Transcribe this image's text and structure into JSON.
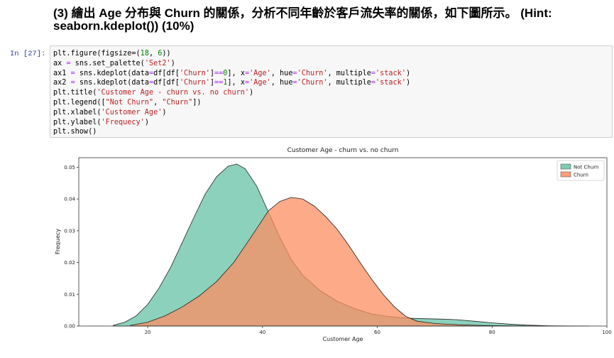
{
  "heading": {
    "line1": "(3) 繪出 Age 分布與 Churn 的關係，分析不同年齡於客戶流失率的關係，如下圖所示。 (Hint:",
    "line2": "seaborn.kdeplot()) (10%)"
  },
  "cell": {
    "prompt": "In [27]:",
    "lines": [
      [
        {
          "t": "plt.figure(figsize=(",
          "c": ""
        },
        {
          "t": "18",
          "c": "num"
        },
        {
          "t": ", ",
          "c": ""
        },
        {
          "t": "6",
          "c": "num"
        },
        {
          "t": "))",
          "c": ""
        }
      ],
      [
        {
          "t": "ax ",
          "c": ""
        },
        {
          "t": "=",
          "c": "op"
        },
        {
          "t": " sns.set_palette(",
          "c": ""
        },
        {
          "t": "'Set2'",
          "c": "str"
        },
        {
          "t": ")",
          "c": ""
        }
      ],
      [
        {
          "t": "ax1 ",
          "c": ""
        },
        {
          "t": "=",
          "c": "op"
        },
        {
          "t": " sns.kdeplot(data",
          "c": ""
        },
        {
          "t": "=",
          "c": "op"
        },
        {
          "t": "df[df[",
          "c": ""
        },
        {
          "t": "'Churn'",
          "c": "str"
        },
        {
          "t": "]",
          "c": ""
        },
        {
          "t": "==",
          "c": "op"
        },
        {
          "t": "0",
          "c": "num"
        },
        {
          "t": "], x",
          "c": ""
        },
        {
          "t": "=",
          "c": "op"
        },
        {
          "t": "'Age'",
          "c": "str"
        },
        {
          "t": ", hue",
          "c": ""
        },
        {
          "t": "=",
          "c": "op"
        },
        {
          "t": "'Churn'",
          "c": "str"
        },
        {
          "t": ", multiple",
          "c": ""
        },
        {
          "t": "=",
          "c": "op"
        },
        {
          "t": "'stack'",
          "c": "str"
        },
        {
          "t": ")",
          "c": ""
        }
      ],
      [
        {
          "t": "ax2 ",
          "c": ""
        },
        {
          "t": "=",
          "c": "op"
        },
        {
          "t": " sns.kdeplot(data",
          "c": ""
        },
        {
          "t": "=",
          "c": "op"
        },
        {
          "t": "df[df[",
          "c": ""
        },
        {
          "t": "'Churn'",
          "c": "str"
        },
        {
          "t": "]",
          "c": ""
        },
        {
          "t": "==",
          "c": "op"
        },
        {
          "t": "1",
          "c": "num"
        },
        {
          "t": "], x",
          "c": ""
        },
        {
          "t": "=",
          "c": "op"
        },
        {
          "t": "'Age'",
          "c": "str"
        },
        {
          "t": ", hue",
          "c": ""
        },
        {
          "t": "=",
          "c": "op"
        },
        {
          "t": "'Churn'",
          "c": "str"
        },
        {
          "t": ", multiple",
          "c": ""
        },
        {
          "t": "=",
          "c": "op"
        },
        {
          "t": "'stack'",
          "c": "str"
        },
        {
          "t": ")",
          "c": ""
        }
      ],
      [
        {
          "t": "plt.title(",
          "c": ""
        },
        {
          "t": "'Customer Age - churn vs. no churn'",
          "c": "str"
        },
        {
          "t": ")",
          "c": ""
        }
      ],
      [
        {
          "t": "plt.legend([",
          "c": ""
        },
        {
          "t": "\"Not Churn\"",
          "c": "str"
        },
        {
          "t": ", ",
          "c": ""
        },
        {
          "t": "\"Churn\"",
          "c": "str"
        },
        {
          "t": "])",
          "c": ""
        }
      ],
      [
        {
          "t": "plt.xlabel(",
          "c": ""
        },
        {
          "t": "'Customer Age'",
          "c": "str"
        },
        {
          "t": ")",
          "c": ""
        }
      ],
      [
        {
          "t": "plt.ylabel(",
          "c": ""
        },
        {
          "t": "'Frequecy'",
          "c": "str"
        },
        {
          "t": ")",
          "c": ""
        }
      ],
      [
        {
          "t": "plt.show()",
          "c": ""
        }
      ]
    ]
  },
  "chart_data": {
    "type": "area",
    "title": "Customer Age - churn vs. no churn",
    "xlabel": "Customer Age",
    "ylabel": "Frequecy",
    "xlim": [
      8,
      100
    ],
    "ylim": [
      0,
      0.053
    ],
    "xticks": [
      20,
      40,
      60,
      80,
      100
    ],
    "yticks": [
      0.0,
      0.01,
      0.02,
      0.03,
      0.04,
      0.05
    ],
    "ytick_labels": [
      "0.00",
      "0.01",
      "0.02",
      "0.03",
      "0.04",
      "0.05"
    ],
    "legend_position": "top-right",
    "grid": false,
    "series": [
      {
        "name": "Not Churn",
        "color": "#66c2a5",
        "x": [
          14,
          16,
          18,
          20,
          22,
          24,
          26,
          28,
          30,
          32,
          34,
          35.5,
          37,
          39,
          41,
          43,
          45,
          47,
          50,
          53,
          56,
          59,
          62,
          65,
          68,
          71,
          74,
          77,
          80,
          83,
          86,
          90,
          94,
          97
        ],
        "y": [
          0.0002,
          0.0012,
          0.0032,
          0.0068,
          0.012,
          0.0185,
          0.0262,
          0.034,
          0.0415,
          0.047,
          0.0503,
          0.051,
          0.0495,
          0.044,
          0.036,
          0.028,
          0.021,
          0.016,
          0.0112,
          0.0078,
          0.0055,
          0.0038,
          0.003,
          0.0025,
          0.0023,
          0.0022,
          0.002,
          0.0015,
          0.001,
          0.0006,
          0.0003,
          0.0001,
          3e-05,
          0.0
        ]
      },
      {
        "name": "Churn",
        "color": "#fc8d62",
        "x": [
          17,
          20,
          23,
          26,
          29,
          32,
          35,
          38,
          41,
          43,
          45,
          47,
          49,
          51,
          53,
          55,
          57,
          59,
          61,
          63,
          65,
          67,
          70,
          74,
          78,
          82,
          86,
          90,
          95
        ],
        "y": [
          0.0002,
          0.0012,
          0.0032,
          0.006,
          0.0095,
          0.014,
          0.02,
          0.028,
          0.0362,
          0.0392,
          0.0405,
          0.04,
          0.0378,
          0.0345,
          0.0305,
          0.0255,
          0.02,
          0.0148,
          0.01,
          0.006,
          0.003,
          0.0015,
          0.0008,
          0.0004,
          0.0002,
          0.0001,
          5e-05,
          1e-05,
          0.0
        ]
      }
    ]
  }
}
